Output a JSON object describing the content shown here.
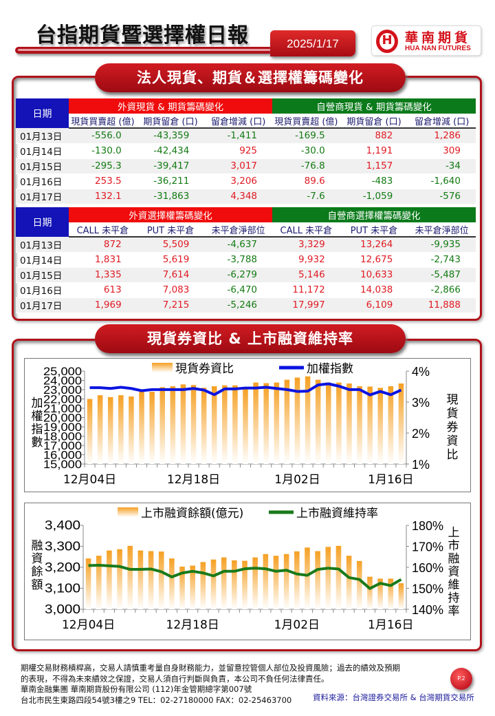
{
  "header": {
    "title": "台指期貨暨選擇權日報",
    "date": "2025/1/17",
    "logo_cn": "華南期貨",
    "logo_en": "HUA NAN FUTURES"
  },
  "section1": {
    "title": "法人現貨、期貨＆選擇權籌碼變化"
  },
  "table1": {
    "date_header": "日期",
    "group_foreign": "外資現貨 & 期貨籌碼變化",
    "group_dealer": "自營商現貨 & 期貨籌碼變化",
    "columns": [
      "現貨買賣超 (億)",
      "期貨留倉 (口)",
      "留倉增減 (口)",
      "現貨買賣超 (億)",
      "期貨留倉 (口)",
      "留倉增減 (口)"
    ],
    "rows": [
      {
        "date": "01月13日",
        "values": [
          "-556.0",
          "-43,359",
          "-1,411",
          "-169.5",
          "882",
          "1,286"
        ]
      },
      {
        "date": "01月14日",
        "values": [
          "-130.0",
          "-42,434",
          "925",
          "-30.0",
          "1,191",
          "309"
        ]
      },
      {
        "date": "01月15日",
        "values": [
          "-295.3",
          "-39,417",
          "3,017",
          "-76.8",
          "1,157",
          "-34"
        ]
      },
      {
        "date": "01月16日",
        "values": [
          "253.5",
          "-36,211",
          "3,206",
          "89.6",
          "-483",
          "-1,640"
        ]
      },
      {
        "date": "01月17日",
        "values": [
          "132.1",
          "-31,863",
          "4,348",
          "-7.6",
          "-1,059",
          "-576"
        ]
      }
    ]
  },
  "table2": {
    "date_header": "日期",
    "group_foreign": "外資選擇權籌碼變化",
    "group_dealer": "自營商選擇權籌碼變化",
    "columns": [
      "CALL 未平倉",
      "PUT  未平倉",
      "未平倉淨部位",
      "CALL 未平倉",
      "PUT  未平倉",
      "未平倉淨部位"
    ],
    "rows": [
      {
        "date": "01月13日",
        "values": [
          "872",
          "5,509",
          "-4,637",
          "3,329",
          "13,264",
          "-9,935"
        ]
      },
      {
        "date": "01月14日",
        "values": [
          "1,831",
          "5,619",
          "-3,788",
          "9,932",
          "12,675",
          "-2,743"
        ]
      },
      {
        "date": "01月15日",
        "values": [
          "1,335",
          "7,614",
          "-6,279",
          "5,146",
          "10,633",
          "-5,487"
        ]
      },
      {
        "date": "01月16日",
        "values": [
          "613",
          "7,083",
          "-6,470",
          "11,172",
          "14,038",
          "-2,866"
        ]
      },
      {
        "date": "01月17日",
        "values": [
          "1,969",
          "7,215",
          "-5,246",
          "17,997",
          "6,109",
          "11,888"
        ]
      }
    ]
  },
  "section2": {
    "title": "現貨券資比 & 上市融資維持率"
  },
  "colors": {
    "brand_red": "#b0121b",
    "positive": "#e01a22",
    "negative": "#137a13",
    "bar_orange": "#f5a024",
    "index_line": "#0a14e0",
    "maintenance_line": "#1a7a1a"
  },
  "chart_data": [
    {
      "type": "bar+line",
      "x_tick_labels": [
        "12月04日",
        "12月18日",
        "1月02日",
        "1月16日"
      ],
      "x_tick_positions": [
        1,
        11,
        21,
        30
      ],
      "left_axis": {
        "label": "加權指數",
        "ylim": [
          15000,
          25000
        ],
        "ticks": [
          "15,000",
          "16,000",
          "17,000",
          "18,000",
          "19,000",
          "20,000",
          "21,000",
          "22,000",
          "23,000",
          "24,000",
          "25,000"
        ]
      },
      "right_axis": {
        "label": "現貨券資比",
        "ylim": [
          1,
          4
        ],
        "ticks": [
          "1%",
          "2%",
          "3%",
          "4%"
        ]
      },
      "legend": "top",
      "series": [
        {
          "name": "現貨券資比",
          "type": "bar",
          "axis": "right",
          "unit": "%",
          "values": [
            3.1,
            3.22,
            3.16,
            3.22,
            3.18,
            3.33,
            3.33,
            3.48,
            3.51,
            3.57,
            3.55,
            3.46,
            3.51,
            3.54,
            3.54,
            3.44,
            3.63,
            3.61,
            3.63,
            3.72,
            3.79,
            3.83,
            3.72,
            3.63,
            3.63,
            3.6,
            3.51,
            3.5,
            3.46,
            3.51,
            3.6
          ]
        },
        {
          "name": "加權指數",
          "type": "line",
          "axis": "left",
          "values": [
            23210,
            23210,
            23130,
            23260,
            23130,
            22890,
            23010,
            23010,
            23010,
            23010,
            23130,
            22960,
            22460,
            23080,
            23080,
            23180,
            23180,
            23260,
            23130,
            23010,
            22810,
            22840,
            23510,
            23630,
            23380,
            23010,
            23010,
            22440,
            22810,
            22460,
            22960
          ]
        }
      ]
    },
    {
      "type": "bar+line",
      "x_tick_labels": [
        "12月04日",
        "12月18日",
        "1月02日",
        "1月16日"
      ],
      "x_tick_positions": [
        1,
        11,
        21,
        30
      ],
      "left_axis": {
        "label": "融資餘額",
        "ylim": [
          3000,
          3400
        ],
        "ticks": [
          "3,000",
          "3,100",
          "3,200",
          "3,300",
          "3,400"
        ]
      },
      "right_axis": {
        "label": "上市融資維持率",
        "ylim": [
          140,
          180
        ],
        "ticks": [
          "140%",
          "150%",
          "160%",
          "170%",
          "180%"
        ]
      },
      "legend": "top",
      "series": [
        {
          "name": "上市融資餘額(億元)",
          "type": "bar",
          "axis": "left",
          "values": [
            3242,
            3255,
            3280,
            3286,
            3302,
            3280,
            3277,
            3275,
            3242,
            3203,
            3208,
            3225,
            3237,
            3247,
            3233,
            3231,
            3247,
            3263,
            3255,
            3263,
            3276,
            3294,
            3277,
            3297,
            3302,
            3255,
            3230,
            3155,
            3146,
            3146,
            3124
          ]
        },
        {
          "name": "上市融資維持率",
          "type": "line",
          "axis": "right",
          "unit": "%",
          "values": [
            160.8,
            161.0,
            160.7,
            160.4,
            159.0,
            159.0,
            159.2,
            157.9,
            155.4,
            157.3,
            158.1,
            157.3,
            155.9,
            158.1,
            158.1,
            159.3,
            159.6,
            159.3,
            158.1,
            158.6,
            156.8,
            156.2,
            159.0,
            159.6,
            159.2,
            155.1,
            154.2,
            149.9,
            152.4,
            151.3,
            154.2
          ]
        }
      ]
    }
  ],
  "footer": {
    "disclaimer1": "期權交易財務槓桿高，交易人請慎重考量自身財務能力，並留意控管個人部位及投資風險；過去的績效及預期",
    "disclaimer2": "的表現，不得為未來績效之保證，交易人須自行判斷與負責，本公司不負任何法律責任。",
    "company": "華南金融集團 華南期貨股份有限公司 (112)年金管期總字第007號",
    "address": "台北市民生東路四段54號3樓之9  TEL：02-27180000  FAX：02-25463700",
    "source": "資料來源：台灣證券交易所 & 台灣期貨交易所",
    "page": "P.2"
  }
}
